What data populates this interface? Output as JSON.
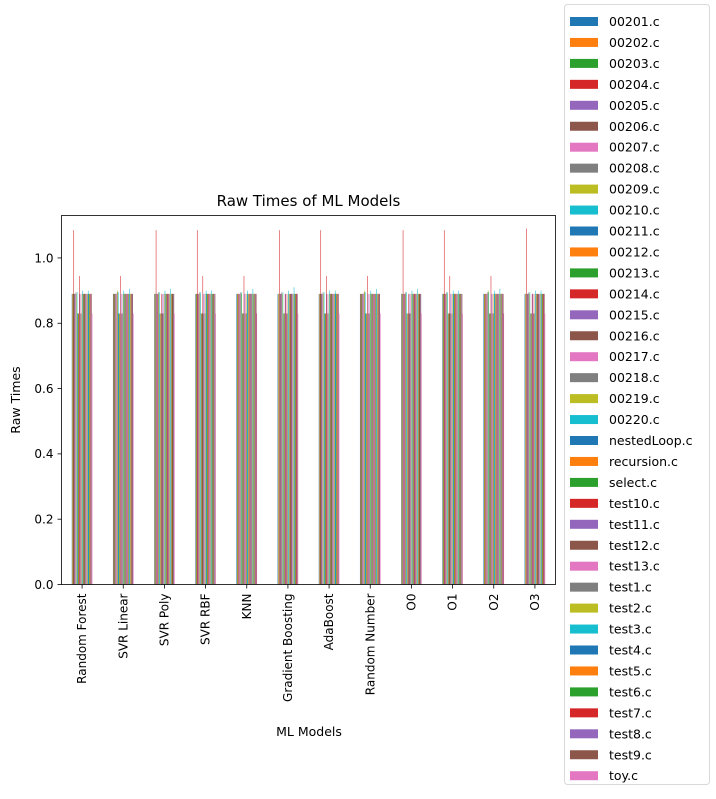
{
  "chart_data": {
    "type": "bar",
    "title": "Raw Times of ML Models",
    "xlabel": "ML Models",
    "ylabel": "Raw Times",
    "ylim": [
      0,
      1.13
    ],
    "yticks": [
      "0.0",
      "0.2",
      "0.4",
      "0.6",
      "0.8",
      "1.0"
    ],
    "grid": false,
    "legend_position": "right-outside",
    "categories": [
      "Random Forest",
      "SVR Linear",
      "SVR Poly",
      "SVR RBF",
      "KNN",
      "Gradient Boosting",
      "AdaBoost",
      "Random Number",
      "O0",
      "O1",
      "O2",
      "O3"
    ],
    "colors": [
      "#1f77b4",
      "#ff7f0e",
      "#2ca02c",
      "#d62728",
      "#9467bd",
      "#8c564b",
      "#e377c2",
      "#7f7f7f",
      "#bcbd22",
      "#17becf"
    ],
    "series": [
      {
        "name": "00201.c",
        "values": [
          0.89,
          0.89,
          0.89,
          0.89,
          0.89,
          0.89,
          0.89,
          0.89,
          0.89,
          0.89,
          0.89,
          0.89
        ]
      },
      {
        "name": "00202.c",
        "values": [
          0.89,
          0.89,
          0.89,
          0.89,
          0.89,
          0.89,
          0.89,
          0.89,
          0.89,
          0.89,
          0.89,
          0.89
        ]
      },
      {
        "name": "00203.c",
        "values": [
          0.89,
          0.89,
          0.89,
          0.89,
          0.89,
          0.89,
          0.89,
          0.89,
          0.89,
          0.89,
          0.89,
          0.89
        ]
      },
      {
        "name": "00204.c",
        "values": [
          1.085,
          0.89,
          1.085,
          1.085,
          0.89,
          1.085,
          1.085,
          0.89,
          1.085,
          1.085,
          0.89,
          1.09
        ]
      },
      {
        "name": "00205.c",
        "values": [
          0.89,
          0.89,
          0.89,
          0.89,
          0.89,
          0.89,
          0.89,
          0.89,
          0.89,
          0.89,
          0.89,
          0.89
        ]
      },
      {
        "name": "00206.c",
        "values": [
          0.89,
          0.89,
          0.89,
          0.89,
          0.89,
          0.89,
          0.89,
          0.89,
          0.89,
          0.89,
          0.89,
          0.89
        ]
      },
      {
        "name": "00207.c",
        "values": [
          0.89,
          0.89,
          0.89,
          0.89,
          0.89,
          0.89,
          0.89,
          0.89,
          0.89,
          0.89,
          0.89,
          0.89
        ]
      },
      {
        "name": "00208.c",
        "values": [
          0.895,
          0.895,
          0.895,
          0.895,
          0.895,
          0.895,
          0.895,
          0.895,
          0.895,
          0.895,
          0.895,
          0.895
        ]
      },
      {
        "name": "00209.c",
        "values": [
          0.89,
          0.9,
          0.89,
          0.89,
          0.89,
          0.89,
          0.89,
          0.9,
          0.89,
          0.89,
          0.9,
          0.89
        ]
      },
      {
        "name": "00210.c",
        "values": [
          0.895,
          0.895,
          0.895,
          0.895,
          0.895,
          0.895,
          0.895,
          0.895,
          0.895,
          0.895,
          0.895,
          0.895
        ]
      },
      {
        "name": "00211.c",
        "values": [
          0.83,
          0.83,
          0.83,
          0.83,
          0.83,
          0.83,
          0.83,
          0.83,
          0.83,
          0.83,
          0.83,
          0.83
        ]
      },
      {
        "name": "00212.c",
        "values": [
          0.83,
          0.83,
          0.83,
          0.83,
          0.83,
          0.83,
          0.83,
          0.83,
          0.83,
          0.83,
          0.83,
          0.83
        ]
      },
      {
        "name": "00213.c",
        "values": [
          0.83,
          0.83,
          0.83,
          0.83,
          0.83,
          0.83,
          0.83,
          0.83,
          0.83,
          0.83,
          0.83,
          0.83
        ]
      },
      {
        "name": "00214.c",
        "values": [
          0.945,
          0.945,
          0.89,
          0.945,
          0.945,
          0.89,
          0.945,
          0.945,
          0.89,
          0.945,
          0.945,
          0.89
        ]
      },
      {
        "name": "00215.c",
        "values": [
          0.89,
          0.89,
          0.89,
          0.89,
          0.89,
          0.89,
          0.89,
          0.89,
          0.89,
          0.89,
          0.89,
          0.89
        ]
      },
      {
        "name": "00216.c",
        "values": [
          0.83,
          0.83,
          0.83,
          0.83,
          0.83,
          0.83,
          0.83,
          0.83,
          0.83,
          0.83,
          0.83,
          0.83
        ]
      },
      {
        "name": "00217.c",
        "values": [
          0.89,
          0.89,
          0.89,
          0.89,
          0.89,
          0.89,
          0.89,
          0.89,
          0.89,
          0.89,
          0.89,
          0.89
        ]
      },
      {
        "name": "00218.c",
        "values": [
          0.83,
          0.83,
          0.83,
          0.83,
          0.83,
          0.83,
          0.83,
          0.83,
          0.83,
          0.83,
          0.83,
          0.83
        ]
      },
      {
        "name": "00219.c",
        "values": [
          0.89,
          0.89,
          0.89,
          0.89,
          0.89,
          0.89,
          0.89,
          0.89,
          0.89,
          0.89,
          0.89,
          0.89
        ]
      },
      {
        "name": "00220.c",
        "values": [
          0.9,
          0.9,
          0.9,
          0.9,
          0.9,
          0.9,
          0.9,
          0.9,
          0.9,
          0.9,
          0.9,
          0.9
        ]
      },
      {
        "name": "nestedLoop.c",
        "values": [
          0.89,
          0.89,
          0.89,
          0.89,
          0.89,
          0.89,
          0.89,
          0.89,
          0.89,
          0.89,
          0.89,
          0.89
        ]
      },
      {
        "name": "recursion.c",
        "values": [
          0.89,
          0.89,
          0.89,
          0.89,
          0.89,
          0.89,
          0.89,
          0.89,
          0.89,
          0.89,
          0.89,
          0.89
        ]
      },
      {
        "name": "select.c",
        "values": [
          0.89,
          0.89,
          0.89,
          0.89,
          0.89,
          0.89,
          0.89,
          0.89,
          0.89,
          0.89,
          0.89,
          0.89
        ]
      },
      {
        "name": "test10.c",
        "values": [
          0.89,
          0.89,
          0.89,
          0.89,
          0.89,
          0.89,
          0.89,
          0.89,
          0.89,
          0.89,
          0.89,
          0.89
        ]
      },
      {
        "name": "test11.c",
        "values": [
          0.89,
          0.89,
          0.89,
          0.89,
          0.89,
          0.89,
          0.89,
          0.89,
          0.89,
          0.89,
          0.89,
          0.89
        ]
      },
      {
        "name": "test12.c",
        "values": [
          0.89,
          0.89,
          0.89,
          0.89,
          0.89,
          0.89,
          0.89,
          0.89,
          0.89,
          0.89,
          0.89,
          0.89
        ]
      },
      {
        "name": "test13.c",
        "values": [
          0.89,
          0.89,
          0.89,
          0.89,
          0.89,
          0.89,
          0.89,
          0.89,
          0.89,
          0.89,
          0.89,
          0.89
        ]
      },
      {
        "name": "test1.c",
        "values": [
          0.89,
          0.89,
          0.89,
          0.89,
          0.89,
          0.89,
          0.89,
          0.89,
          0.89,
          0.89,
          0.89,
          0.89
        ]
      },
      {
        "name": "test2.c",
        "values": [
          0.89,
          0.89,
          0.89,
          0.89,
          0.89,
          0.89,
          0.89,
          0.89,
          0.89,
          0.89,
          0.89,
          0.89
        ]
      },
      {
        "name": "test3.c",
        "values": [
          0.9,
          0.905,
          0.905,
          0.9,
          0.905,
          0.91,
          0.9,
          0.905,
          0.905,
          0.9,
          0.905,
          0.9
        ]
      },
      {
        "name": "test4.c",
        "values": [
          0.89,
          0.89,
          0.89,
          0.89,
          0.89,
          0.89,
          0.89,
          0.89,
          0.89,
          0.89,
          0.89,
          0.89
        ]
      },
      {
        "name": "test5.c",
        "values": [
          0.89,
          0.89,
          0.89,
          0.89,
          0.89,
          0.89,
          0.89,
          0.89,
          0.89,
          0.89,
          0.89,
          0.89
        ]
      },
      {
        "name": "test6.c",
        "values": [
          0.89,
          0.89,
          0.89,
          0.89,
          0.89,
          0.89,
          0.89,
          0.89,
          0.89,
          0.89,
          0.89,
          0.89
        ]
      },
      {
        "name": "test7.c",
        "values": [
          0.89,
          0.89,
          0.89,
          0.89,
          0.89,
          0.89,
          0.89,
          0.89,
          0.89,
          0.89,
          0.89,
          0.89
        ]
      },
      {
        "name": "test8.c",
        "values": [
          0.89,
          0.89,
          0.89,
          0.89,
          0.89,
          0.89,
          0.89,
          0.89,
          0.89,
          0.89,
          0.89,
          0.89
        ]
      },
      {
        "name": "test9.c",
        "values": [
          0.89,
          0.89,
          0.89,
          0.89,
          0.89,
          0.89,
          0.89,
          0.89,
          0.89,
          0.89,
          0.89,
          0.89
        ]
      },
      {
        "name": "toy.c",
        "values": [
          0.83,
          0.83,
          0.83,
          0.83,
          0.83,
          0.83,
          0.83,
          0.83,
          0.83,
          0.83,
          0.83,
          0.83
        ]
      }
    ]
  }
}
